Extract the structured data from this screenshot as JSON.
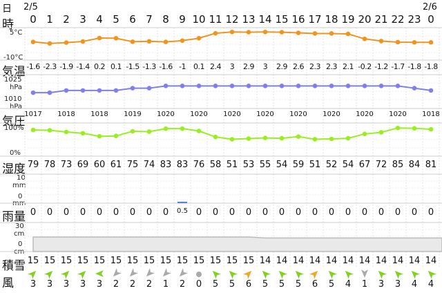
{
  "labels": {
    "day": "日",
    "hour": "時",
    "temp": "気温",
    "pressure": "気圧",
    "humidity": "湿度",
    "rain": "雨量",
    "snow": "積雪",
    "wind": "風"
  },
  "dates": {
    "start": "2/5",
    "end": "2/6"
  },
  "units": {
    "temp_top": "5°C",
    "temp_bottom": "-10°C",
    "press_top": "1025",
    "press_top_unit": "hPa",
    "press_bottom": "1010",
    "press_bottom_unit": "hPa",
    "hum_top": "100%",
    "hum_bottom": "0%",
    "rain_top": "10",
    "rain_top_unit": "mm",
    "rain_bottom": "0",
    "rain_bottom_unit": "mm",
    "snow_top": "30",
    "snow_top_unit": "cm",
    "snow_bottom": "0",
    "snow_bottom_unit": "cm"
  },
  "hours": [
    "0",
    "1",
    "2",
    "3",
    "4",
    "5",
    "6",
    "7",
    "8",
    "9",
    "10",
    "11",
    "12",
    "13",
    "14",
    "15",
    "16",
    "17",
    "18",
    "19",
    "20",
    "21",
    "22",
    "23",
    "0"
  ],
  "temperature": [
    "-1.6",
    "-2.3",
    "-1.9",
    "-1.4",
    "0.2",
    "0.1",
    "-1.5",
    "-1.3",
    "-1.6",
    "-1",
    "0.1",
    "2.4",
    "3",
    "2.9",
    "3",
    "2.9",
    "2.6",
    "2.3",
    "2.3",
    "2.1",
    "-0.2",
    "-1.2",
    "-1.7",
    "-1.8",
    "-1.8"
  ],
  "pressure": [
    "1017",
    "",
    "1018",
    "",
    "1018",
    "",
    "1019",
    "",
    "1020",
    "",
    "1020",
    "",
    "1020",
    "",
    "1020",
    "",
    "1020",
    "",
    "1020",
    "",
    "1020",
    "",
    "1020",
    "",
    "1018"
  ],
  "humidity": [
    "79",
    "78",
    "73",
    "69",
    "60",
    "61",
    "75",
    "74",
    "83",
    "83",
    "76",
    "58",
    "51",
    "53",
    "55",
    "54",
    "59",
    "51",
    "52",
    "54",
    "67",
    "72",
    "85",
    "84",
    "81"
  ],
  "rain": [
    "0",
    "0",
    "0",
    "0",
    "0",
    "0",
    "0",
    "0",
    "0",
    "0.5",
    "0",
    "0",
    "0",
    "0",
    "0",
    "0",
    "0",
    "0",
    "0",
    "0",
    "0",
    "0",
    "0",
    "0",
    "0"
  ],
  "snow": [
    "15",
    "15",
    "15",
    "15",
    "15",
    "15",
    "15",
    "15",
    "15",
    "15",
    "15",
    "15",
    "15",
    "15",
    "14",
    "14",
    "14",
    "14",
    "14",
    "14",
    "14",
    "14",
    "14",
    "14",
    "14"
  ],
  "wind_speed": [
    "3",
    "3",
    "3",
    "3",
    "3",
    "2",
    "2",
    "2",
    "1",
    "2",
    "0",
    "5",
    "5",
    "6",
    "5",
    "5",
    "5",
    "6",
    "5",
    "4",
    "1",
    "3",
    "3",
    "4",
    "4"
  ],
  "chart_data": [
    {
      "type": "line",
      "series": [
        {
          "values": [
            -1.6,
            -2.3,
            -1.9,
            -1.4,
            0.2,
            0.1,
            -1.5,
            -1.3,
            -1.6,
            -1,
            0.1,
            2.4,
            3,
            2.9,
            3,
            2.9,
            2.6,
            2.3,
            2.3,
            2.1,
            -0.2,
            -1.2,
            -1.7,
            -1.8,
            -1.8
          ]
        }
      ],
      "ylim": [
        -10,
        5
      ],
      "color": "#f0941e"
    },
    {
      "type": "line",
      "series": [
        {
          "values": [
            1017,
            1017,
            1018,
            1018,
            1018,
            1018,
            1019,
            1019,
            1020,
            1020,
            1020,
            1020,
            1020,
            1020,
            1020,
            1020,
            1020,
            1020,
            1020,
            1020,
            1020,
            1020,
            1020,
            1019,
            1018
          ]
        }
      ],
      "ylim": [
        1010,
        1025
      ],
      "color": "#7f7fef"
    },
    {
      "type": "line",
      "series": [
        {
          "values": [
            79,
            78,
            73,
            69,
            60,
            61,
            75,
            74,
            83,
            83,
            76,
            58,
            51,
            53,
            55,
            54,
            59,
            51,
            52,
            54,
            67,
            72,
            85,
            84,
            81
          ]
        }
      ],
      "ylim": [
        0,
        100
      ],
      "color": "#99ee22"
    },
    {
      "type": "bar",
      "values": [
        0,
        0,
        0,
        0,
        0,
        0,
        0,
        0,
        0,
        0.5,
        0,
        0,
        0,
        0,
        0,
        0,
        0,
        0,
        0,
        0,
        0,
        0,
        0,
        0,
        0
      ],
      "ylim": [
        0,
        10
      ],
      "color": "#5b7de8"
    },
    {
      "type": "area",
      "values": [
        15,
        15,
        15,
        15,
        15,
        15,
        15,
        15,
        15,
        15,
        15,
        15,
        15,
        15,
        14,
        14,
        14,
        14,
        14,
        14,
        14,
        14,
        14,
        14,
        14
      ],
      "ylim": [
        0,
        30
      ],
      "color": "#bbbbbb"
    }
  ],
  "wind_dirs": [
    "NE",
    "NE",
    "NE",
    "NE",
    "W",
    "SW",
    "SW",
    "SW",
    "SW",
    "SW",
    "calm",
    "NW",
    "NW",
    "NE",
    "NW",
    "NW",
    "NW",
    "NE",
    "NW",
    "NW",
    "S",
    "NW",
    "NW",
    "NW",
    "NW"
  ],
  "colors": {
    "temp": "#f0941e",
    "pressure": "#7f7fef",
    "humidity": "#99ee22",
    "rain": "#5b7de8",
    "wind_green": "#7ed321",
    "wind_gray": "#aaaaaa",
    "wind_orange": "#f5a623"
  }
}
